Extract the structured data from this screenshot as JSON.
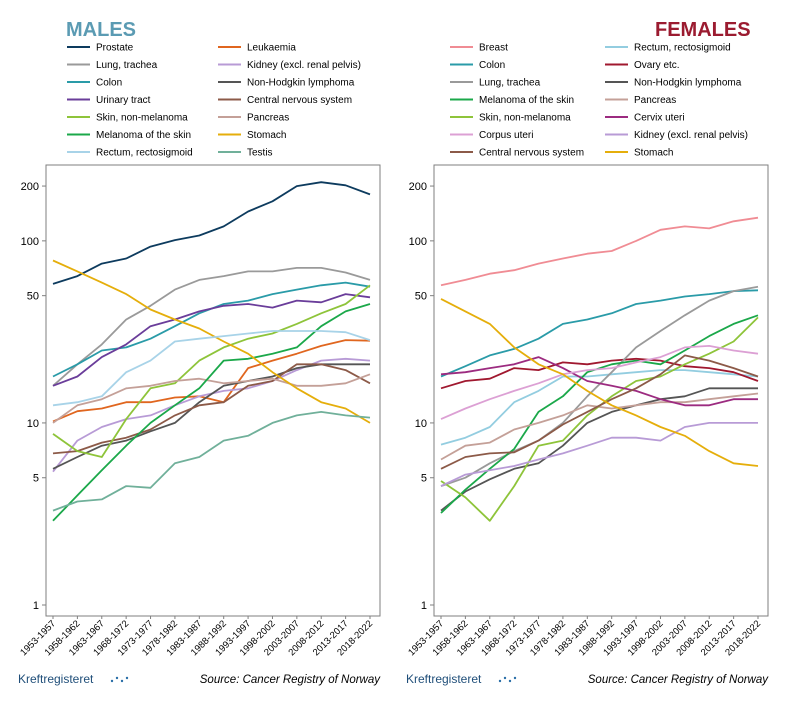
{
  "chart_data": [
    {
      "type": "line",
      "title": "MALES",
      "title_color": "#5b9bb3",
      "y_scale": "log",
      "ylim": [
        1,
        250
      ],
      "y_ticks": [
        1,
        5,
        10,
        50,
        100,
        200
      ],
      "x": [
        "1953-1957",
        "1958-1962",
        "1963-1967",
        "1968-1972",
        "1973-1977",
        "1978-1982",
        "1983-1987",
        "1988-1992",
        "1993-1997",
        "1998-2002",
        "2003-2007",
        "2008-2012",
        "2013-2017",
        "2018-2022"
      ],
      "grid": false,
      "legend_placement": "top",
      "series": [
        {
          "name": "Prostate",
          "color": "#0d3b5e",
          "values": [
            58,
            64,
            75,
            80,
            93,
            101,
            107,
            120,
            145,
            165,
            200,
            210,
            202,
            180
          ]
        },
        {
          "name": "Leukaemia",
          "color": "#e0661f",
          "values": [
            10.2,
            11.6,
            12,
            13,
            13,
            13.8,
            14,
            13,
            20,
            22,
            24,
            26.5,
            28.5,
            28.3
          ]
        },
        {
          "name": "Lung, trachea",
          "color": "#9a9a9a",
          "values": [
            16,
            21,
            27,
            37,
            44,
            54,
            61,
            64,
            68,
            68,
            71,
            71,
            67,
            61
          ]
        },
        {
          "name": "Kidney (excl. renal pelvis)",
          "color": "#b89bd6",
          "values": [
            5.4,
            8,
            9.5,
            10.5,
            11,
            12.5,
            14,
            15,
            15.5,
            17,
            19.5,
            22,
            22.5,
            22
          ]
        },
        {
          "name": "Colon",
          "color": "#2a9ba8",
          "values": [
            18,
            21,
            25,
            26,
            29,
            34,
            40,
            45,
            47,
            51,
            54,
            57,
            59,
            56
          ]
        },
        {
          "name": "Non-Hodgkin lymphoma",
          "color": "#555555",
          "values": [
            5.6,
            6.5,
            7.5,
            8,
            9,
            10,
            13,
            16,
            17,
            18,
            20,
            21,
            21,
            21
          ]
        },
        {
          "name": "Urinary tract",
          "color": "#6a3d9a",
          "values": [
            16,
            18,
            23,
            27,
            34,
            37,
            41,
            44,
            45,
            43,
            47,
            46,
            51,
            49
          ]
        },
        {
          "name": "Central nervous system",
          "color": "#8c5a48",
          "values": [
            6.8,
            7,
            7.8,
            8.3,
            9.2,
            11,
            12.5,
            13,
            16,
            17,
            21,
            21,
            19.5,
            16.5
          ]
        },
        {
          "name": "Skin, non-melanoma",
          "color": "#8ec43a",
          "values": [
            8.7,
            7,
            6.5,
            10.5,
            15.5,
            16.5,
            22,
            26,
            29,
            31,
            35,
            40,
            45,
            57
          ]
        },
        {
          "name": "Pancreas",
          "color": "#c4a098",
          "values": [
            10,
            12.5,
            13.5,
            15.5,
            16,
            17,
            17.5,
            16.5,
            17,
            17.5,
            16,
            16,
            16.5,
            18.5
          ]
        },
        {
          "name": "Melanoma of the skin",
          "color": "#1ba84a",
          "values": [
            2.9,
            4,
            5.5,
            7.5,
            10,
            12.5,
            15.5,
            22,
            22.5,
            24,
            26,
            34,
            41,
            45
          ]
        },
        {
          "name": "Stomach",
          "color": "#e5ae0b",
          "values": [
            78,
            68,
            59,
            51,
            42,
            37,
            33,
            28,
            24,
            19,
            15.5,
            13,
            12,
            10
          ]
        },
        {
          "name": "Rectum, rectosigmoid",
          "color": "#a8d3e8",
          "values": [
            12.5,
            13,
            14,
            19,
            22,
            28,
            29,
            30,
            31,
            32,
            32,
            32,
            31.5,
            28.5
          ]
        },
        {
          "name": "Testis",
          "color": "#70b09a",
          "values": [
            3.3,
            3.7,
            3.8,
            4.5,
            4.4,
            6,
            6.5,
            8,
            8.5,
            10,
            11,
            11.5,
            11,
            10.7
          ]
        }
      ],
      "source": "Source: Cancer Registry of Norway",
      "logo": "Kreftregisteret"
    },
    {
      "type": "line",
      "title": "FEMALES",
      "title_color": "#9b1b30",
      "y_scale": "log",
      "ylim": [
        1,
        250
      ],
      "y_ticks": [
        1,
        5,
        10,
        50,
        100,
        200
      ],
      "x": [
        "1953-1957",
        "1958-1962",
        "1963-1967",
        "1968-1972",
        "1973-1977",
        "1978-1982",
        "1983-1987",
        "1988-1992",
        "1993-1997",
        "1998-2002",
        "2003-2007",
        "2008-2012",
        "2013-2017",
        "2018-2022"
      ],
      "grid": false,
      "legend_placement": "top",
      "series": [
        {
          "name": "Breast",
          "color": "#f08c94",
          "values": [
            57,
            61,
            66,
            69,
            75,
            80,
            85,
            88,
            100,
            115,
            120,
            117,
            128,
            134
          ]
        },
        {
          "name": "Rectum, rectosigmoid",
          "color": "#93cde0",
          "values": [
            7.6,
            8.3,
            9.5,
            13,
            15,
            18,
            18,
            18.5,
            19,
            19.5,
            19.5,
            19,
            18.5,
            18
          ]
        },
        {
          "name": "Colon",
          "color": "#2a9ba8",
          "values": [
            18,
            20.5,
            23.5,
            25.5,
            29,
            35,
            37,
            40,
            45,
            47,
            49.5,
            51,
            53,
            53.5
          ]
        },
        {
          "name": "Ovary etc.",
          "color": "#a0182f",
          "values": [
            15.5,
            17,
            17.5,
            20,
            19.5,
            21.5,
            21,
            22,
            22.5,
            22,
            20.5,
            20,
            19,
            17
          ]
        },
        {
          "name": "Lung, trachea",
          "color": "#9a9a9a",
          "values": [
            4.5,
            5,
            6,
            7,
            8,
            10,
            14,
            19,
            26,
            32,
            39,
            47,
            53,
            56
          ]
        },
        {
          "name": "Non-Hodgkin lymphoma",
          "color": "#555555",
          "values": [
            3.3,
            4.2,
            4.9,
            5.6,
            6,
            7.5,
            10,
            11.5,
            12.5,
            13.5,
            14,
            15.5,
            15.5,
            15.5
          ]
        },
        {
          "name": "Melanoma of the skin",
          "color": "#1ba84a",
          "values": [
            3.2,
            4.3,
            5.6,
            7.2,
            11.5,
            14,
            19,
            21,
            22,
            21,
            25,
            30,
            35,
            39
          ]
        },
        {
          "name": "Pancreas",
          "color": "#c4a098",
          "values": [
            6.3,
            7.5,
            7.8,
            9.2,
            10,
            11,
            12.5,
            12,
            12.5,
            13,
            13,
            13.5,
            14,
            14.5
          ]
        },
        {
          "name": "Skin, non-melanoma",
          "color": "#8ec43a",
          "values": [
            4.8,
            3.9,
            2.9,
            4.5,
            7.5,
            8,
            11,
            14,
            17,
            18,
            21,
            24,
            28,
            38
          ]
        },
        {
          "name": "Cervix uteri",
          "color": "#9c2b80",
          "values": [
            18.5,
            19,
            20,
            21,
            23,
            20,
            17,
            16,
            15,
            13.5,
            12.5,
            12.5,
            13.5,
            13.5
          ]
        },
        {
          "name": "Corpus uteri",
          "color": "#dca0d4",
          "values": [
            10.5,
            12,
            13.5,
            15,
            16.5,
            18.5,
            19.5,
            20,
            21.5,
            23,
            26,
            26.5,
            25,
            24
          ]
        },
        {
          "name": "Kidney (excl. renal pelvis)",
          "color": "#b89bd6",
          "values": [
            4.5,
            5.2,
            5.5,
            5.8,
            6.3,
            6.8,
            7.5,
            8.3,
            8.3,
            8,
            9.5,
            10,
            10,
            10
          ]
        },
        {
          "name": "Central nervous system",
          "color": "#8c5a48",
          "values": [
            5.6,
            6.5,
            6.8,
            6.9,
            8,
            9.8,
            11.5,
            13.5,
            15.5,
            18.5,
            23.5,
            22,
            20,
            18
          ]
        },
        {
          "name": "Stomach",
          "color": "#e5ae0b",
          "values": [
            48,
            41,
            35,
            26,
            21,
            18.5,
            15,
            12.5,
            11,
            9.5,
            8.5,
            7,
            6,
            5.8
          ]
        }
      ],
      "source": "Source: Cancer Registry of Norway",
      "logo": "Kreftregisteret"
    }
  ]
}
